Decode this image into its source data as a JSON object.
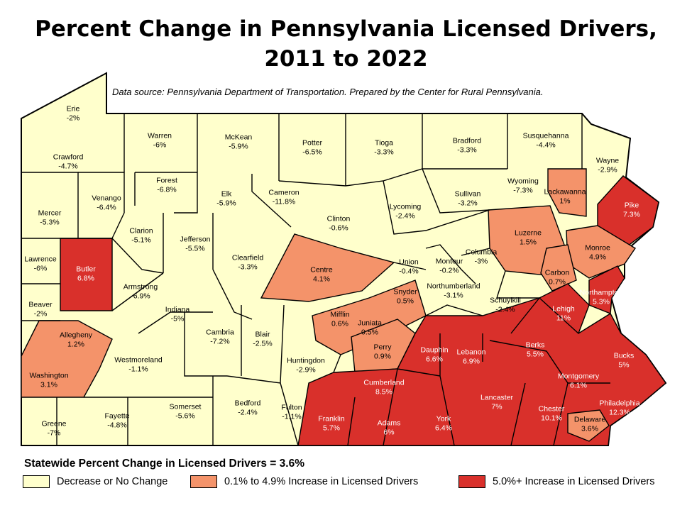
{
  "title": {
    "line1": "Percent Change in Pennsylvania Licensed Drivers,",
    "line2": "2011 to 2022"
  },
  "source": "Data source: Pennsylvania Department of Transportation. Prepared by the Center for Rural Pennsylvania.",
  "statewide": "Statewide Percent Change in Licensed Drivers = 3.6%",
  "colors": {
    "decrease": "#ffffcc",
    "low_increase": "#f4936a",
    "high_increase": "#d9302b",
    "border": "#000000"
  },
  "legend": [
    {
      "label": "Decrease or No Change",
      "class": "decrease"
    },
    {
      "label": "0.1% to 4.9% Increase in Licensed Drivers",
      "class": "low_increase"
    },
    {
      "label": "5.0%+ Increase in Licensed Drivers",
      "class": "high_increase"
    }
  ],
  "counties": [
    {
      "name": "Erie",
      "value": "-2%",
      "class": "decrease"
    },
    {
      "name": "Crawford",
      "value": "-4.7%",
      "class": "decrease"
    },
    {
      "name": "Warren",
      "value": "-6%",
      "class": "decrease"
    },
    {
      "name": "McKean",
      "value": "-5.9%",
      "class": "decrease"
    },
    {
      "name": "Potter",
      "value": "-6.5%",
      "class": "decrease"
    },
    {
      "name": "Tioga",
      "value": "-3.3%",
      "class": "decrease"
    },
    {
      "name": "Bradford",
      "value": "-3.3%",
      "class": "decrease"
    },
    {
      "name": "Susquehanna",
      "value": "-4.4%",
      "class": "decrease"
    },
    {
      "name": "Wayne",
      "value": "-2.9%",
      "class": "decrease"
    },
    {
      "name": "Mercer",
      "value": "-5.3%",
      "class": "decrease"
    },
    {
      "name": "Venango",
      "value": "-6.4%",
      "class": "decrease"
    },
    {
      "name": "Forest",
      "value": "-6.8%",
      "class": "decrease"
    },
    {
      "name": "Elk",
      "value": "-5.9%",
      "class": "decrease"
    },
    {
      "name": "Cameron",
      "value": "-11.8%",
      "class": "decrease"
    },
    {
      "name": "Clinton",
      "value": "-0.6%",
      "class": "decrease"
    },
    {
      "name": "Lycoming",
      "value": "-2.4%",
      "class": "decrease"
    },
    {
      "name": "Sullivan",
      "value": "-3.2%",
      "class": "decrease"
    },
    {
      "name": "Wyoming",
      "value": "-7.3%",
      "class": "decrease"
    },
    {
      "name": "Lackawanna",
      "value": "1%",
      "class": "low_increase"
    },
    {
      "name": "Pike",
      "value": "7.3%",
      "class": "high_increase"
    },
    {
      "name": "Lawrence",
      "value": "-6%",
      "class": "decrease"
    },
    {
      "name": "Butler",
      "value": "6.8%",
      "class": "high_increase"
    },
    {
      "name": "Clarion",
      "value": "-5.1%",
      "class": "decrease"
    },
    {
      "name": "Jefferson",
      "value": "-5.5%",
      "class": "decrease"
    },
    {
      "name": "Clearfield",
      "value": "-3.3%",
      "class": "decrease"
    },
    {
      "name": "Centre",
      "value": "4.1%",
      "class": "low_increase"
    },
    {
      "name": "Union",
      "value": "-0.4%",
      "class": "decrease"
    },
    {
      "name": "Montour",
      "value": "-0.2%",
      "class": "decrease"
    },
    {
      "name": "Columbia",
      "value": "-3%",
      "class": "decrease"
    },
    {
      "name": "Luzerne",
      "value": "1.5%",
      "class": "low_increase"
    },
    {
      "name": "Monroe",
      "value": "4.9%",
      "class": "low_increase"
    },
    {
      "name": "Carbon",
      "value": "0.7%",
      "class": "low_increase"
    },
    {
      "name": "Beaver",
      "value": "-2%",
      "class": "decrease"
    },
    {
      "name": "Armstrong",
      "value": "-6.9%",
      "class": "decrease"
    },
    {
      "name": "Indiana",
      "value": "-5%",
      "class": "decrease"
    },
    {
      "name": "Snyder",
      "value": "0.5%",
      "class": "low_increase"
    },
    {
      "name": "Northumberland",
      "value": "-3.1%",
      "class": "decrease"
    },
    {
      "name": "Schuylkill",
      "value": "-2.4%",
      "class": "decrease"
    },
    {
      "name": "Northampton",
      "value": "5.3%",
      "class": "high_increase"
    },
    {
      "name": "Lehigh",
      "value": "11%",
      "class": "high_increase"
    },
    {
      "name": "Allegheny",
      "value": "1.2%",
      "class": "low_increase"
    },
    {
      "name": "Mifflin",
      "value": "0.6%",
      "class": "low_increase"
    },
    {
      "name": "Juniata",
      "value": "0.5%",
      "class": "low_increase"
    },
    {
      "name": "Cambria",
      "value": "-7.2%",
      "class": "decrease"
    },
    {
      "name": "Blair",
      "value": "-2.5%",
      "class": "decrease"
    },
    {
      "name": "Perry",
      "value": "0.9%",
      "class": "low_increase"
    },
    {
      "name": "Dauphin",
      "value": "6.6%",
      "class": "high_increase"
    },
    {
      "name": "Lebanon",
      "value": "6.9%",
      "class": "high_increase"
    },
    {
      "name": "Berks",
      "value": "5.5%",
      "class": "high_increase"
    },
    {
      "name": "Bucks",
      "value": "5%",
      "class": "high_increase"
    },
    {
      "name": "Westmoreland",
      "value": "-1.1%",
      "class": "decrease"
    },
    {
      "name": "Washington",
      "value": "3.1%",
      "class": "low_increase"
    },
    {
      "name": "Huntingdon",
      "value": "-2.9%",
      "class": "decrease"
    },
    {
      "name": "Cumberland",
      "value": "8.5%",
      "class": "high_increase"
    },
    {
      "name": "Montgomery",
      "value": "6.1%",
      "class": "high_increase"
    },
    {
      "name": "Somerset",
      "value": "-5.6%",
      "class": "decrease"
    },
    {
      "name": "Bedford",
      "value": "-2.4%",
      "class": "decrease"
    },
    {
      "name": "Fulton",
      "value": "-1.1%",
      "class": "decrease"
    },
    {
      "name": "Lancaster",
      "value": "7%",
      "class": "high_increase"
    },
    {
      "name": "Chester",
      "value": "10.1%",
      "class": "high_increase"
    },
    {
      "name": "Philadelphia",
      "value": "12.3%",
      "class": "high_increase"
    },
    {
      "name": "Fayette",
      "value": "-4.8%",
      "class": "decrease"
    },
    {
      "name": "Greene",
      "value": "-7%",
      "class": "decrease"
    },
    {
      "name": "Franklin",
      "value": "5.7%",
      "class": "high_increase"
    },
    {
      "name": "Adams",
      "value": "6%",
      "class": "high_increase"
    },
    {
      "name": "York",
      "value": "6.4%",
      "class": "high_increase"
    },
    {
      "name": "Delaware",
      "value": "3.6%",
      "class": "low_increase"
    }
  ]
}
